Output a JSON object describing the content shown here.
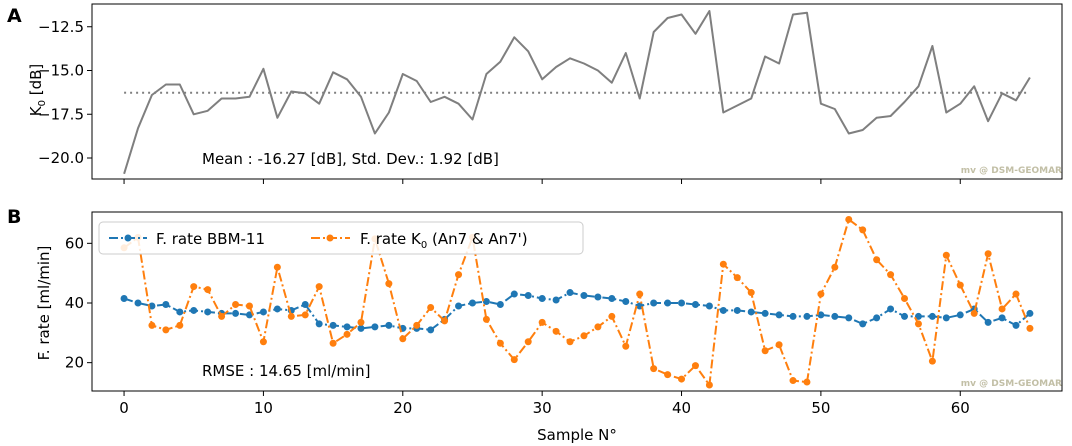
{
  "chart_data": [
    {
      "panel_label": "A",
      "type": "line",
      "ylabel_main": "K",
      "ylabel_sub": "0",
      "ylabel_unit": "[dB]",
      "ylim": [
        -21.2,
        -11.2
      ],
      "yticks": [
        -20.0,
        -17.5,
        -15.0,
        -12.5
      ],
      "ytick_labels": [
        "−20.0",
        "−17.5",
        "−15.0",
        "−12.5"
      ],
      "xlim": [
        -2.3,
        67.3
      ],
      "xticks": [
        0,
        10,
        20,
        30,
        40,
        50,
        60
      ],
      "annotation": "Mean : -16.27 [dB], Std. Dev.: 1.92 [dB]",
      "watermark": "mv @ DSM-GEOMAR",
      "series": [
        {
          "name": "K0",
          "color": "#7f7f7f",
          "style": "solid",
          "x": [
            0,
            1,
            2,
            3,
            4,
            5,
            6,
            7,
            8,
            9,
            10,
            11,
            12,
            13,
            14,
            15,
            16,
            17,
            18,
            19,
            20,
            21,
            22,
            23,
            24,
            25,
            26,
            27,
            28,
            29,
            30,
            31,
            32,
            33,
            34,
            35,
            36,
            37,
            38,
            39,
            40,
            41,
            42,
            43,
            44,
            45,
            46,
            47,
            48,
            49,
            50,
            51,
            52,
            53,
            54,
            55,
            56,
            57,
            58,
            59,
            60,
            61,
            62,
            63,
            64,
            65
          ],
          "values": [
            -20.9,
            -18.3,
            -16.4,
            -15.8,
            -15.8,
            -17.5,
            -17.3,
            -16.6,
            -16.6,
            -16.5,
            -14.9,
            -17.7,
            -16.2,
            -16.3,
            -16.9,
            -15.1,
            -15.5,
            -16.5,
            -18.6,
            -17.4,
            -15.2,
            -15.6,
            -16.8,
            -16.5,
            -16.9,
            -17.8,
            -15.2,
            -14.5,
            -13.1,
            -13.9,
            -15.5,
            -14.8,
            -14.3,
            -14.6,
            -15.0,
            -15.7,
            -14.0,
            -16.6,
            -12.8,
            -12.0,
            -11.8,
            -12.9,
            -11.6,
            -17.4,
            -17.0,
            -16.6,
            -14.2,
            -14.6,
            -11.8,
            -11.7,
            -16.9,
            -17.2,
            -18.6,
            -18.4,
            -17.7,
            -17.6,
            -16.8,
            -15.9,
            -13.6,
            -17.4,
            -16.9,
            -15.9,
            -17.9,
            -16.3,
            -16.7,
            -15.4
          ]
        },
        {
          "name": "Mean",
          "color": "#7f7f7f",
          "style": "dotted",
          "x": [
            0,
            65
          ],
          "values": [
            -16.27,
            -16.27
          ]
        }
      ]
    },
    {
      "panel_label": "B",
      "type": "line",
      "ylabel": "F. rate [ml/min]",
      "ylim": [
        10.5,
        70.5
      ],
      "yticks": [
        20,
        40,
        60
      ],
      "ytick_labels": [
        "20",
        "40",
        "60"
      ],
      "xlim": [
        -2.3,
        67.3
      ],
      "xticks": [
        0,
        10,
        20,
        30,
        40,
        50,
        60
      ],
      "xtick_labels": [
        "0",
        "10",
        "20",
        "30",
        "40",
        "50",
        "60"
      ],
      "xlabel": "Sample N°",
      "annotation": "RMSE : 14.65 [ml/min]",
      "watermark": "mv @ DSM-GEOMAR",
      "legend_position": "upper-left",
      "series": [
        {
          "name": "F. rate BBM-11",
          "color": "#1f77b4",
          "style": "dashdot-markers",
          "x": [
            0,
            1,
            2,
            3,
            4,
            5,
            6,
            7,
            8,
            9,
            10,
            11,
            12,
            13,
            14,
            15,
            16,
            17,
            18,
            19,
            20,
            21,
            22,
            23,
            24,
            25,
            26,
            27,
            28,
            29,
            30,
            31,
            32,
            33,
            34,
            35,
            36,
            37,
            38,
            39,
            40,
            41,
            42,
            43,
            44,
            45,
            46,
            47,
            48,
            49,
            50,
            51,
            52,
            53,
            54,
            55,
            56,
            57,
            58,
            59,
            60,
            61,
            62,
            63,
            64,
            65
          ],
          "values": [
            41.5,
            40.0,
            39.0,
            39.5,
            37.0,
            37.5,
            37.0,
            36.5,
            36.5,
            36.0,
            37.0,
            38.0,
            37.5,
            39.5,
            33.0,
            32.5,
            32.0,
            31.5,
            32.0,
            32.5,
            31.5,
            31.5,
            31.0,
            34.5,
            39.0,
            40.0,
            40.5,
            39.5,
            43.0,
            42.5,
            41.5,
            41.0,
            43.5,
            42.5,
            42.0,
            41.5,
            40.5,
            39.0,
            40.0,
            40.0,
            40.0,
            39.5,
            39.0,
            37.5,
            37.5,
            37.0,
            36.5,
            36.0,
            35.5,
            35.5,
            36.0,
            35.5,
            35.0,
            33.0,
            35.0,
            38.0,
            35.5,
            35.5,
            35.5,
            35.0,
            36.0,
            38.0,
            33.5,
            35.0,
            32.5,
            36.5
          ]
        },
        {
          "name_main": "F. rate K",
          "name_sub": "0",
          "name_rest": " (An7 & An7')",
          "color": "#ff7f0e",
          "style": "dashdot-markers",
          "x": [
            0,
            1,
            2,
            3,
            4,
            5,
            6,
            7,
            8,
            9,
            10,
            11,
            12,
            13,
            14,
            15,
            16,
            17,
            18,
            19,
            20,
            21,
            22,
            23,
            24,
            25,
            26,
            27,
            28,
            29,
            30,
            31,
            32,
            33,
            34,
            35,
            36,
            37,
            38,
            39,
            40,
            41,
            42,
            43,
            44,
            45,
            46,
            47,
            48,
            49,
            50,
            51,
            52,
            53,
            54,
            55,
            56,
            57,
            58,
            59,
            60,
            61,
            62,
            63,
            64,
            65
          ],
          "values": [
            58.5,
            62.0,
            32.5,
            31.0,
            32.5,
            45.5,
            44.5,
            35.5,
            39.5,
            39.0,
            27.0,
            52.0,
            35.5,
            36.0,
            45.5,
            26.5,
            29.5,
            33.5,
            61.5,
            46.5,
            28.0,
            32.5,
            38.5,
            34.0,
            49.5,
            62.0,
            34.5,
            26.5,
            21.0,
            27.0,
            33.5,
            30.5,
            27.0,
            29.0,
            32.0,
            35.5,
            25.5,
            43.0,
            18.0,
            16.0,
            14.5,
            19.0,
            12.5,
            53.0,
            48.5,
            43.5,
            24.0,
            26.0,
            14.0,
            13.5,
            43.0,
            52.0,
            68.0,
            64.5,
            54.5,
            49.5,
            41.5,
            33.0,
            20.5,
            56.0,
            46.0,
            36.5,
            56.5,
            38.0,
            43.0,
            31.5
          ]
        }
      ]
    }
  ]
}
